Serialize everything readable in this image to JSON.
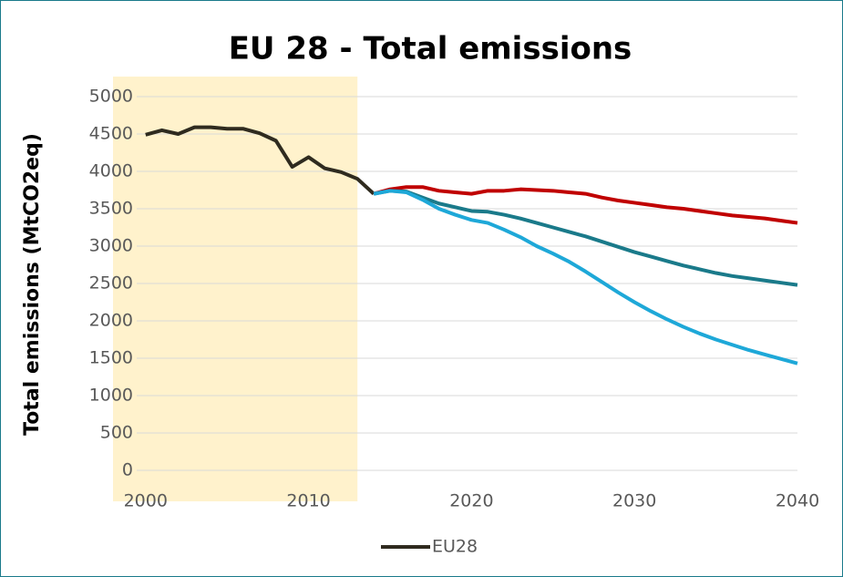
{
  "chart_data": {
    "type": "line",
    "title": "EU 28 - Total emissions",
    "y_label": "Total emissions (MtCO2eq)",
    "x": [
      2000,
      2001,
      2002,
      2003,
      2004,
      2005,
      2006,
      2007,
      2008,
      2009,
      2010,
      2011,
      2012,
      2013,
      2014,
      2015,
      2016,
      2017,
      2018,
      2019,
      2020,
      2021,
      2022,
      2023,
      2024,
      2025,
      2026,
      2027,
      2028,
      2029,
      2030,
      2031,
      2032,
      2033,
      2034,
      2035,
      2036,
      2037,
      2038,
      2039,
      2040
    ],
    "series": [
      {
        "name": "EU28",
        "color": "#2f2b1f",
        "values": [
          4490,
          4550,
          4500,
          4590,
          4590,
          4570,
          4570,
          4510,
          4410,
          4060,
          4190,
          4040,
          3990,
          3900,
          3700,
          null,
          null,
          null,
          null,
          null,
          null,
          null,
          null,
          null,
          null,
          null,
          null,
          null,
          null,
          null,
          null,
          null,
          null,
          null,
          null,
          null,
          null,
          null,
          null,
          null,
          null
        ]
      },
      {
        "color": "#c00000",
        "values": [
          null,
          null,
          null,
          null,
          null,
          null,
          null,
          null,
          null,
          null,
          null,
          null,
          null,
          null,
          3700,
          3760,
          3790,
          3790,
          3740,
          3720,
          3700,
          3740,
          3740,
          3760,
          3750,
          3740,
          3720,
          3700,
          3650,
          3610,
          3580,
          3550,
          3520,
          3500,
          3470,
          3440,
          3410,
          3390,
          3370,
          3340,
          3310
        ]
      },
      {
        "color": "#1a7a8a",
        "values": [
          null,
          null,
          null,
          null,
          null,
          null,
          null,
          null,
          null,
          null,
          null,
          null,
          null,
          null,
          3700,
          3740,
          3730,
          3650,
          3570,
          3520,
          3470,
          3460,
          3420,
          3370,
          3310,
          3250,
          3190,
          3130,
          3060,
          2990,
          2920,
          2860,
          2800,
          2740,
          2690,
          2640,
          2600,
          2570,
          2540,
          2510,
          2480
        ]
      },
      {
        "color": "#1ea8d8",
        "values": [
          null,
          null,
          null,
          null,
          null,
          null,
          null,
          null,
          null,
          null,
          null,
          null,
          null,
          null,
          3700,
          3740,
          3720,
          3620,
          3500,
          3420,
          3350,
          3310,
          3220,
          3120,
          3000,
          2900,
          2790,
          2660,
          2520,
          2380,
          2250,
          2130,
          2020,
          1920,
          1830,
          1750,
          1680,
          1610,
          1550,
          1490,
          1430
        ]
      }
    ],
    "xlim": [
      1998,
      2040
    ],
    "xticks": [
      2000,
      2010,
      2020,
      2030,
      2040
    ],
    "ylim": [
      0,
      5000
    ],
    "yticks": [
      0,
      500,
      1000,
      1500,
      2000,
      2500,
      3000,
      3500,
      4000,
      4500,
      5000
    ],
    "grid": true,
    "highlight": [
      1998,
      2013
    ],
    "highlight_color": "#fff2cc",
    "legend": "bottom"
  }
}
